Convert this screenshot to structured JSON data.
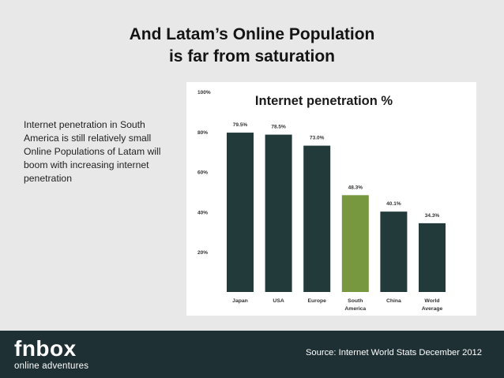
{
  "slide": {
    "title_line1": "And Latam’s Online Population",
    "title_line2": "is far from saturation",
    "body": "Internet penetration in South America is still relatively small Online Populations of Latam will boom with increasing internet penetration",
    "source": "Source: Internet World Stats December 2012",
    "logo_word": "fnbox",
    "logo_tag": "online adventures"
  },
  "colors": {
    "bar_default": "#233a3a",
    "bar_highlight": "#789840",
    "footer_bg": "#1e3034"
  },
  "chart_data": {
    "type": "bar",
    "title": "Internet penetration %",
    "categories": [
      [
        "Japan"
      ],
      [
        "USA"
      ],
      [
        "Europe"
      ],
      [
        "South",
        "America"
      ],
      [
        "China"
      ],
      [
        "World",
        "Average"
      ]
    ],
    "values": [
      79.5,
      78.5,
      73.0,
      48.3,
      40.1,
      34.3
    ],
    "value_labels": [
      "79.5%",
      "78.5%",
      "73.0%",
      "48.3%",
      "40.1%",
      "34.3%"
    ],
    "highlight_index": 3,
    "ylim": [
      0,
      100
    ],
    "yticks": [
      20,
      40,
      60,
      80,
      100
    ],
    "ytick_labels": [
      "20%",
      "40%",
      "60%",
      "80%",
      "100%"
    ],
    "grid": false
  }
}
